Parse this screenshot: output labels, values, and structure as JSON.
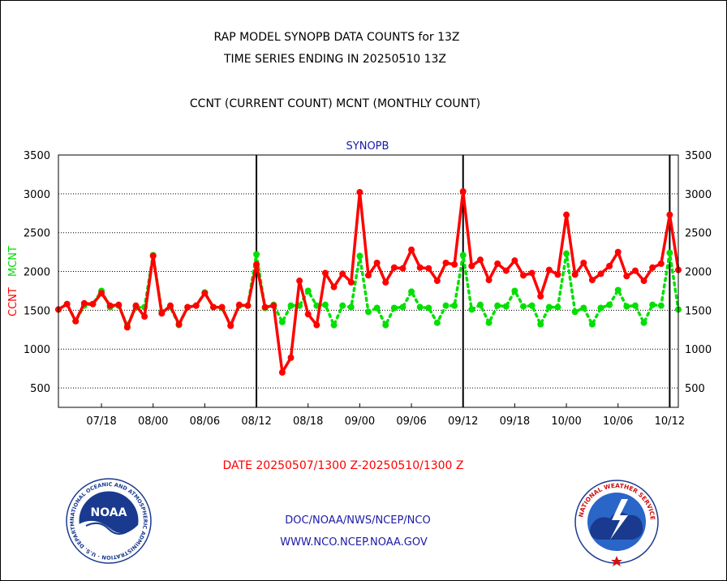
{
  "header": {
    "title_line1": "RAP MODEL SYNOPB DATA COUNTS for 13Z",
    "title_line2": "TIME SERIES ENDING IN 20250510 13Z",
    "subtitle": "CCNT (CURRENT COUNT) MCNT (MONTHLY COUNT)"
  },
  "footer": {
    "date_range": "DATE 20250507/1300 Z-20250510/1300 Z",
    "link1": "DOC/NOAA/NWS/NCEP/NCO",
    "link2": "WWW.NCO.NCEP.NOAA.GOV"
  },
  "logos": {
    "noaa": {
      "name": "noaa-logo",
      "text": "NOAA",
      "ring": "NATIONAL OCEANIC AND ATMOSPHERIC ADMINISTRATION · U.S. DEPARTMENT OF COMMERCE"
    },
    "nws": {
      "name": "nws-logo",
      "ring": "NATIONAL WEATHER SERVICE"
    }
  },
  "chart_data": {
    "type": "line",
    "title": "SYNOPB",
    "ylabel_left": [
      "CCNT",
      "MCNT"
    ],
    "ylim": [
      250,
      3500
    ],
    "yticks": [
      500,
      1000,
      1500,
      2000,
      2500,
      3000,
      3500
    ],
    "xlim": [
      0,
      72
    ],
    "xtick_labels": [
      "07/18",
      "08/00",
      "08/06",
      "08/12",
      "08/18",
      "09/00",
      "09/06",
      "09/12",
      "09/18",
      "10/00",
      "10/06",
      "10/12"
    ],
    "xtick_hours": [
      5,
      11,
      17,
      23,
      29,
      35,
      41,
      47,
      53,
      59,
      65,
      71
    ],
    "day_boundaries": [
      23,
      47,
      71
    ],
    "grid": true,
    "colors": {
      "ccnt": "#ff0000",
      "mcnt": "#00e000"
    },
    "series": [
      {
        "name": "CCNT",
        "key": "ccnt",
        "values": [
          1510,
          1580,
          1360,
          1590,
          1580,
          1720,
          1560,
          1570,
          1280,
          1560,
          1420,
          2200,
          1460,
          1560,
          1320,
          1540,
          1560,
          1720,
          1540,
          1540,
          1300,
          1570,
          1560,
          2090,
          1540,
          1560,
          700,
          890,
          1880,
          1450,
          1310,
          1980,
          1800,
          1970,
          1860,
          3020,
          1950,
          2110,
          1860,
          2050,
          2040,
          2280,
          2050,
          2040,
          1880,
          2110,
          2090,
          3030,
          2070,
          2150,
          1890,
          2100,
          2010,
          2140,
          1950,
          1980,
          1680,
          2020,
          1960,
          2730,
          1960,
          2110,
          1890,
          1970,
          2070,
          2250,
          1940,
          2010,
          1880,
          2050,
          2100,
          2730,
          2020
        ]
      },
      {
        "name": "MCNT",
        "key": "mcnt",
        "values": [
          1510,
          1580,
          1360,
          1560,
          1580,
          1750,
          1540,
          1560,
          1300,
          1540,
          1540,
          2210,
          1480,
          1540,
          1310,
          1540,
          1560,
          1730,
          1540,
          1530,
          1310,
          1560,
          1560,
          2220,
          1530,
          1570,
          1350,
          1560,
          1560,
          1750,
          1560,
          1570,
          1310,
          1560,
          1540,
          2200,
          1480,
          1530,
          1310,
          1530,
          1540,
          1740,
          1540,
          1530,
          1340,
          1560,
          1560,
          2210,
          1510,
          1570,
          1340,
          1560,
          1550,
          1750,
          1550,
          1560,
          1320,
          1540,
          1540,
          2230,
          1480,
          1530,
          1320,
          1530,
          1570,
          1760,
          1550,
          1560,
          1340,
          1570,
          1560,
          2240,
          1510
        ]
      }
    ]
  }
}
